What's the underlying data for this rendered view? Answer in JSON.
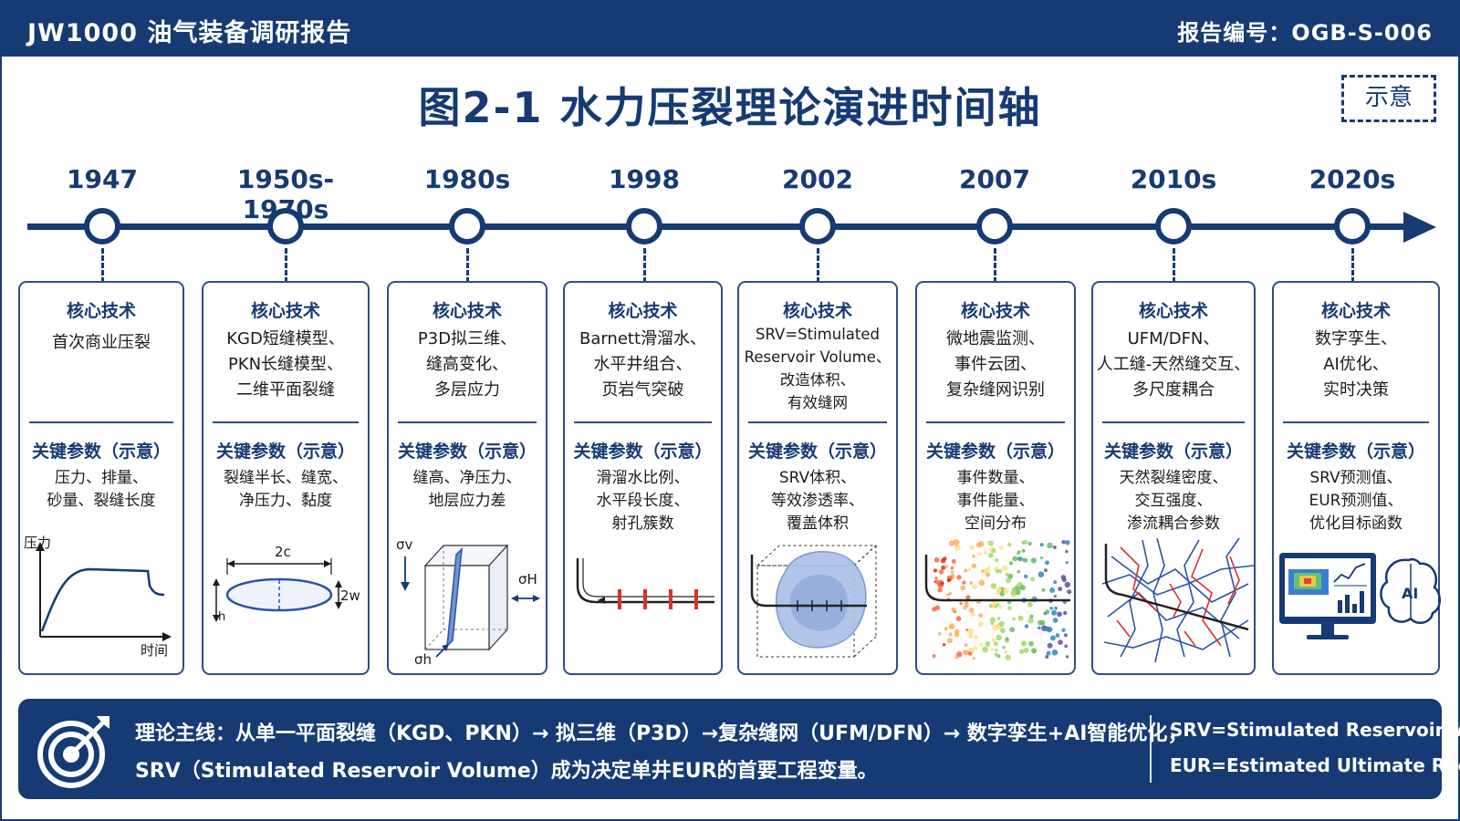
{
  "header": {
    "brand": "JW1000 油气装备调研报告",
    "report_code": "报告编号：OGB-S-006"
  },
  "title": "图2-1 水力压裂理论演进时间轴",
  "stamp": "示意",
  "timeline": [
    {
      "year": "1947",
      "heading": "核心技术",
      "tech": "首次商业压裂",
      "param_heading": "关键参数（示意）",
      "params": "压力、排量、\n砂量、裂缝长度"
    },
    {
      "year": "1950s-1970s",
      "heading": "核心技术",
      "tech": "KGD短缝模型、\nPKN长缝模型、\n二维平面裂缝",
      "param_heading": "关键参数（示意）",
      "params": "裂缝半长、缝宽、\n净压力、黏度"
    },
    {
      "year": "1980s",
      "heading": "核心技术",
      "tech": "P3D拟三维、\n缝高变化、\n多层应力",
      "param_heading": "关键参数（示意）",
      "params": "缝高、净压力、\n地层应力差"
    },
    {
      "year": "1998",
      "heading": "核心技术",
      "tech": "Barnett滑溜水、\n水平井组合、\n页岩气突破",
      "param_heading": "关键参数（示意）",
      "params": "滑溜水比例、\n水平段长度、\n射孔簇数"
    },
    {
      "year": "2002",
      "heading": "核心技术",
      "tech": "SRV=Stimulated\nReservoir Volume、\n改造体积、\n有效缝网",
      "param_heading": "关键参数（示意）",
      "params": "SRV体积、\n等效渗透率、\n覆盖体积"
    },
    {
      "year": "2007",
      "heading": "核心技术",
      "tech": "微地震监测、\n事件云团、\n复杂缝网识别",
      "param_heading": "关键参数（示意）",
      "params": "事件数量、\n事件能量、\n空间分布"
    },
    {
      "year": "2010s",
      "heading": "核心技术",
      "tech": "UFM/DFN、\n人工缝-天然缝交互、\n多尺度耦合",
      "param_heading": "关键参数（示意）",
      "params": "天然裂缝密度、\n交互强度、\n渗流耦合参数"
    },
    {
      "year": "2020s",
      "heading": "核心技术",
      "tech": "数字孪生、\nAI优化、\n实时决策",
      "param_heading": "关键参数（示意）",
      "params": "SRV预测值、\nEUR预测值、\n优化目标函数"
    }
  ],
  "illustrations": {
    "pressure_curve": {
      "y_label": "压力",
      "x_label": "时间"
    },
    "kgd": {
      "length_label": "2c",
      "width_label": "2w",
      "height_label": "h"
    },
    "p3d": {
      "sigma_v": "σv",
      "sigma_h_max": "σH",
      "sigma_h_min": "σh"
    },
    "ai_label": "AI"
  },
  "summary": {
    "line1": "理论主线：从单一平面裂缝（KGD、PKN）→ 拟三维（P3D）→复杂缝网（UFM/DFN）→ 数字孪生+AI智能优化；",
    "line2": "SRV（Stimulated Reservoir Volume）成为决定单井EUR的首要工程变量。",
    "abbr1": "SRV=Stimulated Reservoir Volume",
    "abbr2": "EUR=Estimated Ultimate Recovery"
  },
  "colors": {
    "navy": "#163a73",
    "fracture_red": "#d9302b",
    "fracture_blue": "#2a54a8"
  }
}
